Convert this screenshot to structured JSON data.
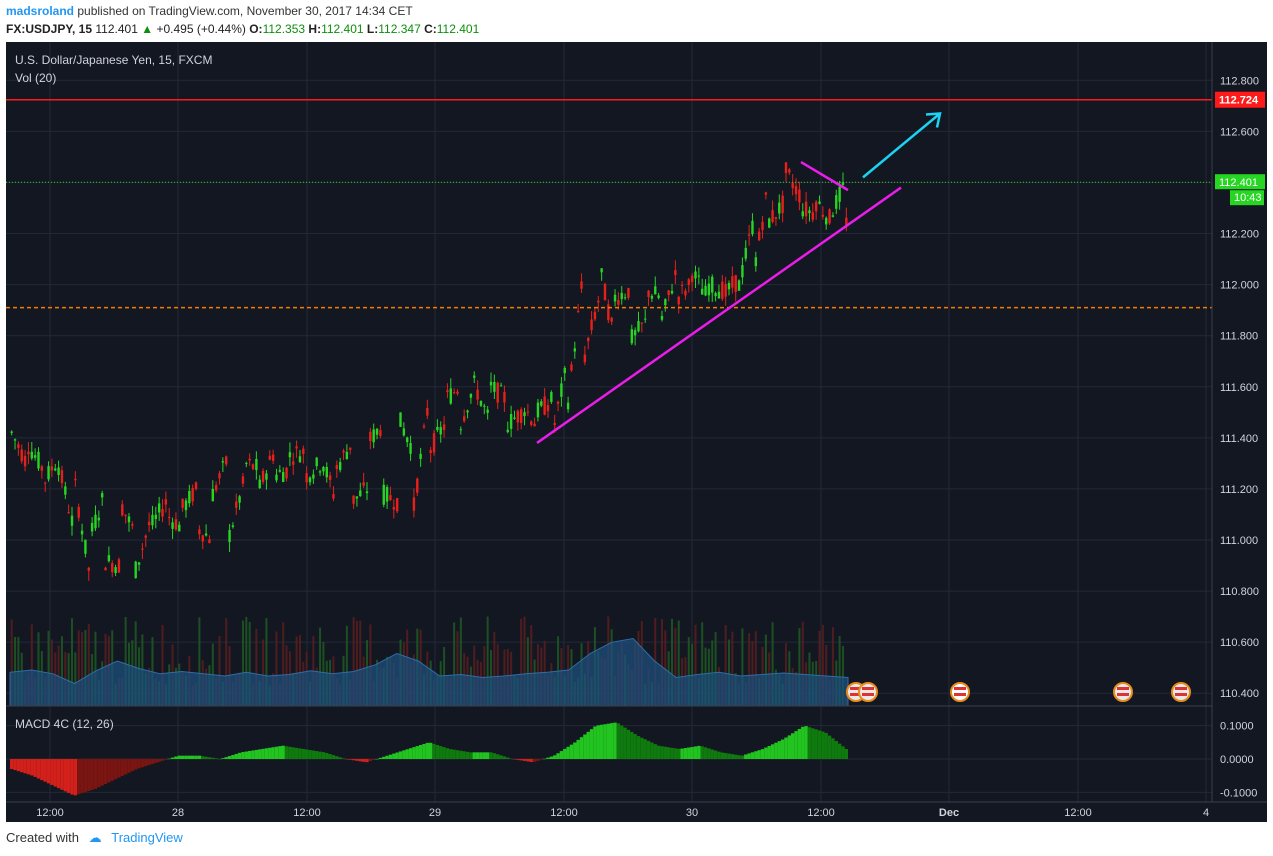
{
  "header": {
    "author": "madsroland",
    "published_text": "published on TradingView.com, November 30, 2017 14:34 CET",
    "symbol": "FX:USDJPY, 15",
    "last": "112.401",
    "change": "+0.495 (+0.44%)",
    "o_label": "O:",
    "o_value": "112.353",
    "h_label": "H:",
    "h_value": "112.401",
    "l_label": "L:",
    "l_value": "112.347",
    "c_label": "C:",
    "c_value": "112.401"
  },
  "legend": {
    "instrument": "U.S. Dollar/Japanese Yen, 15, FXCM",
    "volume": "Vol (20)",
    "macd": "MACD 4C (12, 26)"
  },
  "footer": {
    "created_with": "Created with",
    "brand": "TradingView"
  },
  "colors": {
    "background": "#131722",
    "grid": "#232836",
    "up_candle": "#27d623",
    "down_candle": "#e8201a",
    "resistance": "#ff1a1a",
    "support_dashed": "#f57c00",
    "trendline": "#e81ee8",
    "arrow": "#19d4f2",
    "volume_ma": "#1e4f7c"
  },
  "chart_data": {
    "type": "candlestick",
    "symbol": "FX:USDJPY",
    "timeframe": "15",
    "price_axis": {
      "ticks": [
        "112.800",
        "112.600",
        "112.400",
        "112.200",
        "112.000",
        "111.800",
        "111.600",
        "111.400",
        "111.200",
        "111.000",
        "110.800",
        "110.600",
        "110.400"
      ],
      "range": [
        110.35,
        112.95
      ]
    },
    "time_axis": {
      "ticks": [
        "12:00",
        "28",
        "12:00",
        "29",
        "12:00",
        "30",
        "12:00",
        "Dec",
        "12:00",
        "4"
      ]
    },
    "macd_axis": {
      "ticks": [
        "0.1000",
        "0.0000",
        "-0.1000"
      ],
      "range": [
        -0.12,
        0.15
      ]
    },
    "annotations": {
      "resistance_level": "112.724",
      "last_price_label": "112.401",
      "countdown_label": "10:43",
      "dashed_level": 111.91,
      "trendline": {
        "from_price": 111.38,
        "to_price": 112.38
      },
      "arrow": "projected upward move toward 112.724"
    },
    "candles_sampled": [
      [
        111.42,
        111.4
      ],
      [
        111.38,
        111.3
      ],
      [
        111.22,
        111.28
      ],
      [
        111.3,
        111.32
      ],
      [
        111.25,
        111.05
      ],
      [
        111.0,
        110.88
      ],
      [
        110.92,
        111.18
      ],
      [
        111.15,
        110.9
      ],
      [
        110.88,
        111.02
      ],
      [
        111.05,
        111.08
      ],
      [
        111.1,
        111.15
      ],
      [
        111.12,
        111.05
      ],
      [
        111.05,
        111.2
      ],
      [
        111.18,
        111.0
      ],
      [
        111.0,
        111.32
      ],
      [
        111.3,
        111.22
      ],
      [
        111.2,
        111.28
      ],
      [
        111.25,
        111.35
      ],
      [
        111.33,
        111.28
      ],
      [
        111.25,
        111.35
      ],
      [
        111.33,
        111.3
      ],
      [
        111.28,
        111.15
      ],
      [
        111.15,
        111.38
      ],
      [
        111.38,
        111.2
      ],
      [
        111.18,
        111.45
      ],
      [
        111.48,
        111.15
      ],
      [
        111.12,
        111.35
      ],
      [
        111.35,
        111.55
      ],
      [
        111.55,
        111.45
      ],
      [
        111.45,
        111.6
      ],
      [
        111.6,
        111.62
      ],
      [
        111.6,
        111.45
      ],
      [
        111.45,
        111.55
      ],
      [
        111.53,
        111.5
      ],
      [
        111.5,
        111.45
      ],
      [
        111.42,
        111.55
      ],
      [
        111.55,
        111.7
      ],
      [
        111.7,
        112.05
      ],
      [
        112.08,
        111.95
      ],
      [
        111.95,
        111.78
      ],
      [
        111.78,
        111.98
      ],
      [
        111.98,
        111.85
      ],
      [
        111.85,
        111.95
      ],
      [
        111.95,
        112.05
      ],
      [
        112.05,
        112.0
      ],
      [
        112.0,
        111.95
      ],
      [
        111.95,
        111.98
      ],
      [
        111.98,
        112.02
      ],
      [
        112.05,
        112.25
      ],
      [
        112.25,
        112.4
      ],
      [
        112.45,
        112.32
      ],
      [
        112.3,
        112.35
      ],
      [
        112.33,
        112.28
      ],
      [
        112.28,
        112.25
      ],
      [
        112.25,
        112.4
      ]
    ],
    "volume_ma_samples": [
      0.45,
      0.48,
      0.43,
      0.3,
      0.47,
      0.6,
      0.5,
      0.43,
      0.46,
      0.43,
      0.4,
      0.45,
      0.4,
      0.42,
      0.47,
      0.43,
      0.46,
      0.55,
      0.7,
      0.6,
      0.4,
      0.42,
      0.38,
      0.4,
      0.43,
      0.45,
      0.48,
      0.7,
      0.85,
      0.9,
      0.6,
      0.38,
      0.42,
      0.45,
      0.4,
      0.42,
      0.44,
      0.42,
      0.4,
      0.38
    ],
    "macd_samples": [
      -0.03,
      -0.05,
      -0.08,
      -0.11,
      -0.09,
      -0.06,
      -0.03,
      -0.01,
      0.01,
      0.01,
      0.0,
      0.02,
      0.03,
      0.04,
      0.03,
      0.02,
      0.0,
      -0.01,
      0.01,
      0.03,
      0.05,
      0.03,
      0.02,
      0.02,
      0.0,
      -0.01,
      0.01,
      0.05,
      0.1,
      0.11,
      0.07,
      0.04,
      0.03,
      0.04,
      0.02,
      0.01,
      0.03,
      0.06,
      0.1,
      0.08,
      0.03
    ]
  }
}
